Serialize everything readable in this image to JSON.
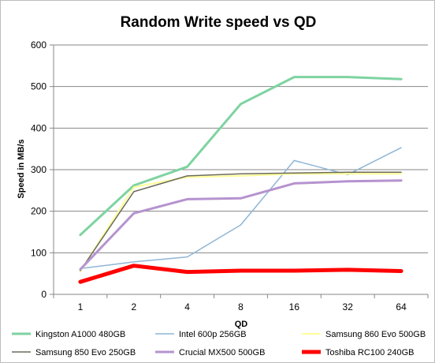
{
  "chart_data": {
    "type": "line",
    "title": "Random Write speed vs QD",
    "xlabel": "QD",
    "ylabel": "Speed in MB/s",
    "categories": [
      "1",
      "2",
      "4",
      "8",
      "16",
      "32",
      "64"
    ],
    "ylim": [
      0,
      600
    ],
    "yticks": [
      0,
      100,
      200,
      300,
      400,
      500,
      600
    ],
    "grid": "horizontal",
    "legend_position": "bottom",
    "series": [
      {
        "name": "Kingston A1000 480GB",
        "color": "#7ed3a0",
        "values": [
          143,
          262,
          307,
          458,
          523,
          523,
          518
        ]
      },
      {
        "name": "Intel 600p 256GB",
        "color": "#8fb6d6",
        "values": [
          62,
          78,
          90,
          167,
          322,
          288,
          353
        ]
      },
      {
        "name": "Samsung 860 Evo 500GB",
        "color": "#ffff99",
        "values": [
          55,
          258,
          282,
          285,
          290,
          290,
          290
        ]
      },
      {
        "name": "Samsung 850 Evo 250GB",
        "color": "#6b6b5a",
        "values": [
          57,
          247,
          285,
          290,
          292,
          294,
          294
        ]
      },
      {
        "name": "Crucial MX500 500GB",
        "color": "#b593cf",
        "values": [
          60,
          195,
          229,
          231,
          267,
          272,
          274
        ]
      },
      {
        "name": "Toshiba RC100 240GB",
        "color": "#ff0000",
        "values": [
          30,
          69,
          54,
          57,
          57,
          59,
          56
        ]
      }
    ]
  }
}
